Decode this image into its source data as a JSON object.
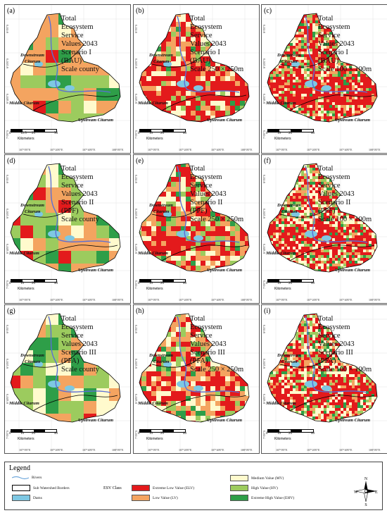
{
  "panels": [
    {
      "label": "(a)",
      "title": "Total\nEcosystem\nService\nValues 2043\nScenario I\n(BAU)\nScale county"
    },
    {
      "label": "(b)",
      "title": "Total\nEcosystem\nService\nValues 2043\nScenario I\n(BAU)\nScale 250 × 250m"
    },
    {
      "label": "(c)",
      "title": "Total\nEcosystem\nService\nValues 2043\nScenario I\n(BAU)\nScale 100 × 100m"
    },
    {
      "label": "(d)",
      "title": "Total\nEcosystem\nService\nValues 2043\nScenario II\n(PPF)\nScale county"
    },
    {
      "label": "(e)",
      "title": "Total\nEcosystem\nService\nValues 2043\nScenario II\n(PPF)\nScale 250 × 250m"
    },
    {
      "label": "(f)",
      "title": "Total\nEcosystem\nService\nValues 2043\nScenario II\n(PPF)\nScale 100 × 100m"
    },
    {
      "label": "(g)",
      "title": "Total\nEcosystem\nService\nValues 2043\nScenario III\n(PFA)\nScale county"
    },
    {
      "label": "(h)",
      "title": "Total\nEcosystem\nService\nValues 2043\nScenario III\n(PFA)\nScale 250 × 250m"
    },
    {
      "label": "(i)",
      "title": "Total\nEcosystem\nService\nValues 2043\nScenario III\n(PFA)\nScale 100 × 100m"
    }
  ],
  "regions": {
    "downstream_a": "Downstream",
    "downstream_b": "Citarum",
    "middle": "Middle Citarum",
    "upstream": "Upstream Citarum"
  },
  "ticks_x": [
    "107°0'0\"E",
    "107°20'0\"E",
    "107°40'0\"E",
    "108°0'0\"E"
  ],
  "ticks_y": [
    "6°0'0\"S",
    "6°20'0\"S",
    "6°40'0\"S",
    "7°0'0\"S"
  ],
  "scalebars": {
    "first": [
      "0",
      "12.5",
      "25",
      "50"
    ],
    "other": [
      "0",
      "10",
      "20",
      "40"
    ],
    "unit": "Kilometers"
  },
  "legend": {
    "title": "Legend",
    "esv_class": "ESV Class",
    "rivers": "Rivers",
    "borders": "Sub Watershed Borders",
    "dams": "Dams",
    "elv": "Extreme Low Value (ELV)",
    "lv": "Low Value (LV)",
    "mv": "Medium Value (MV)",
    "hv": "High Value (HV)",
    "ehv": "Extreme High Value (EHV)",
    "compass": {
      "n": "N",
      "s": "S",
      "e": "E",
      "w": "W"
    }
  },
  "colors": {
    "elv": "#e31a1c",
    "lv": "#f4a460",
    "mv": "#fffacd",
    "hv": "#9ccb5e",
    "ehv": "#2e9e48",
    "dam": "#7ec8e3",
    "river": "#6fa8dc",
    "border": "#000000"
  },
  "scenario_mix": [
    [
      0.05,
      0.38,
      0.12,
      0.3,
      0.15
    ],
    [
      0.4,
      0.22,
      0.2,
      0.13,
      0.05
    ],
    [
      0.45,
      0.15,
      0.2,
      0.12,
      0.08
    ],
    [
      0.04,
      0.34,
      0.14,
      0.3,
      0.18
    ],
    [
      0.3,
      0.24,
      0.24,
      0.15,
      0.07
    ],
    [
      0.38,
      0.14,
      0.26,
      0.14,
      0.08
    ],
    [
      0.03,
      0.3,
      0.17,
      0.32,
      0.18
    ],
    [
      0.28,
      0.26,
      0.26,
      0.14,
      0.06
    ],
    [
      0.33,
      0.18,
      0.28,
      0.13,
      0.08
    ]
  ]
}
